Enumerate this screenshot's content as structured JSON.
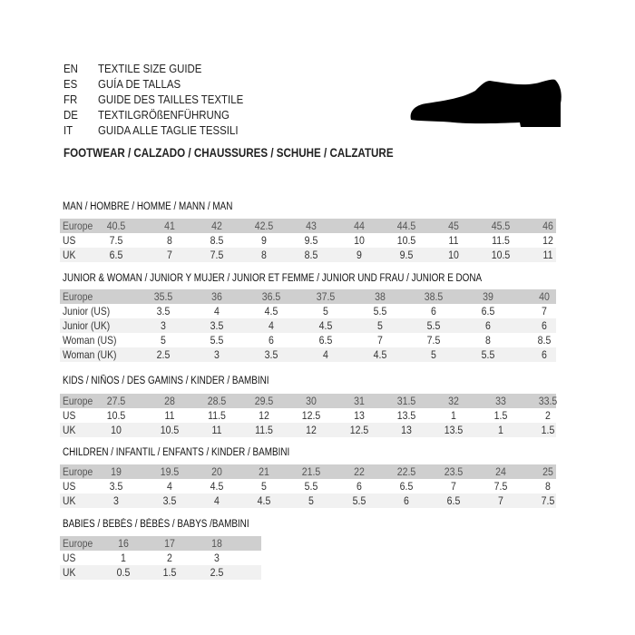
{
  "header": {
    "lines": [
      {
        "code": "EN",
        "title": "TEXTILE SIZE GUIDE"
      },
      {
        "code": "ES",
        "title": "GUÍA DE TALLAS"
      },
      {
        "code": "FR",
        "title": "GUIDE DES TAILLES TEXTILE"
      },
      {
        "code": "DE",
        "title": "TEXTILGRÖßENFÜHRUNG"
      },
      {
        "code": "IT",
        "title": "GUIDA ALLE TAGLIE TESSILI"
      }
    ],
    "footwear": "FOOTWEAR / CALZADO / CHAUSSURES / SCHUHE / CALZATURE",
    "icon": "shoe-icon"
  },
  "colors": {
    "header_row": "#cfcfcf",
    "alt_row": "#f1f1f1"
  },
  "tables": [
    {
      "id": "man",
      "title": "MAN / HOMBRE / HOMME / MANN / MAN",
      "rows": [
        {
          "label": "Europe",
          "values": [
            "40.5",
            "41",
            "42",
            "42.5",
            "43",
            "44",
            "44.5",
            "45",
            "45.5",
            "46"
          ]
        },
        {
          "label": "US",
          "values": [
            "7.5",
            "8",
            "8.5",
            "9",
            "9.5",
            "10",
            "10.5",
            "11",
            "11.5",
            "12"
          ]
        },
        {
          "label": "UK",
          "values": [
            "6.5",
            "7",
            "7.5",
            "8",
            "8.5",
            "9",
            "9.5",
            "10",
            "10.5",
            "11"
          ]
        }
      ]
    },
    {
      "id": "junior-woman",
      "title": "JUNIOR & WOMAN / JUNIOR Y MUJER / JUNIOR ET FEMME / JUNIOR UND FRAU / JUNIOR E DONA",
      "rows": [
        {
          "label": "Europe",
          "values": [
            "35.5",
            "36",
            "36.5",
            "37.5",
            "38",
            "38.5",
            "39",
            "40"
          ]
        },
        {
          "label": "Junior (US)",
          "values": [
            "3.5",
            "4",
            "4.5",
            "5",
            "5.5",
            "6",
            "6.5",
            "7"
          ]
        },
        {
          "label": "Junior (UK)",
          "values": [
            "3",
            "3.5",
            "4",
            "4.5",
            "5",
            "5.5",
            "6",
            "6"
          ]
        },
        {
          "label": "Woman (US)",
          "values": [
            "5",
            "5.5",
            "6",
            "6.5",
            "7",
            "7.5",
            "8",
            "8.5"
          ]
        },
        {
          "label": "Woman (UK)",
          "values": [
            "2.5",
            "3",
            "3.5",
            "4",
            "4.5",
            "5",
            "5.5",
            "6"
          ]
        }
      ]
    },
    {
      "id": "kids",
      "title": "KIDS / NIÑOS / DES GAMINS / KINDER / BAMBINI",
      "rows": [
        {
          "label": "Europe",
          "values": [
            "27.5",
            "28",
            "28.5",
            "29.5",
            "30",
            "31",
            "31.5",
            "32",
            "33",
            "33.5"
          ]
        },
        {
          "label": "US",
          "values": [
            "10.5",
            "11",
            "11.5",
            "12",
            "12.5",
            "13",
            "13.5",
            "1",
            "1.5",
            "2"
          ]
        },
        {
          "label": "UK",
          "values": [
            "10",
            "10.5",
            "11",
            "11.5",
            "12",
            "12.5",
            "13",
            "13.5",
            "1",
            "1.5"
          ]
        }
      ]
    },
    {
      "id": "children",
      "title": "CHILDREN / INFANTIL / ENFANTS / KINDER / BAMBINI",
      "rows": [
        {
          "label": "Europe",
          "values": [
            "19",
            "19.5",
            "20",
            "21",
            "21.5",
            "22",
            "22.5",
            "23.5",
            "24",
            "25"
          ]
        },
        {
          "label": "US",
          "values": [
            "3.5",
            "4",
            "4.5",
            "5",
            "5.5",
            "6",
            "6.5",
            "7",
            "7.5",
            "8"
          ]
        },
        {
          "label": "UK",
          "values": [
            "3",
            "3.5",
            "4",
            "4.5",
            "5",
            "5.5",
            "6",
            "6.5",
            "7",
            "7.5"
          ]
        }
      ]
    },
    {
      "id": "babies",
      "title": "BABIES  / BEBÉS / BÉBÉS / BABYS /BAMBINI",
      "rows": [
        {
          "label": "Europe",
          "values": [
            "16",
            "17",
            "18"
          ]
        },
        {
          "label": "US",
          "values": [
            "1",
            "2",
            "3"
          ]
        },
        {
          "label": "UK",
          "values": [
            "0.5",
            "1.5",
            "2.5"
          ]
        }
      ]
    }
  ]
}
